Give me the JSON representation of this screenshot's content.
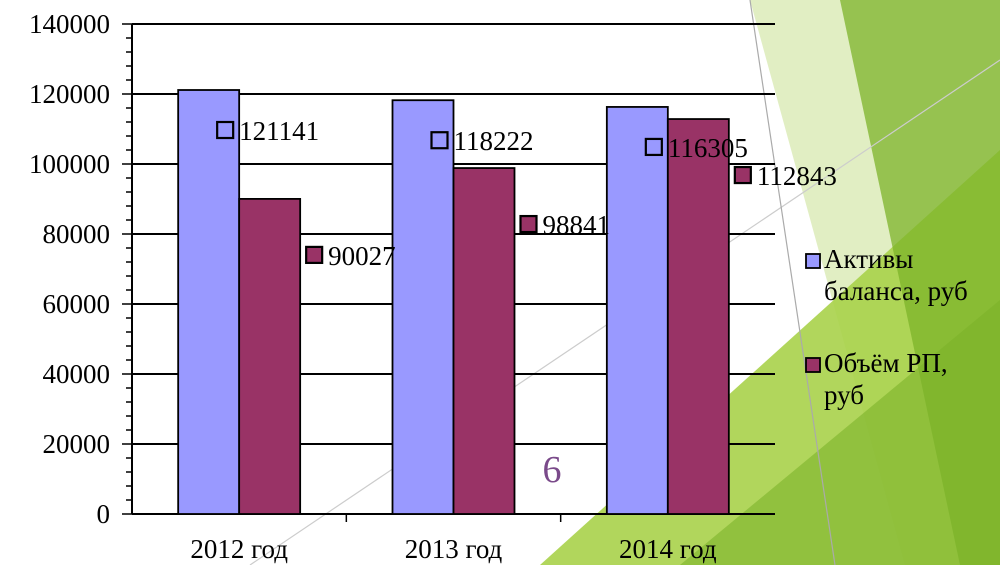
{
  "slide_number": "6",
  "colors": {
    "series_assets": "#9999FF",
    "series_volume": "#993366",
    "deco_green_light": "#DCEBB8",
    "deco_green_mid": "#A9D24A",
    "deco_green_dark": "#7CB32A",
    "slide_number": "#7A4A8A"
  },
  "chart_data": {
    "type": "bar",
    "categories": [
      "2012 год",
      "2013 год",
      "2014 год"
    ],
    "series": [
      {
        "name": "Активы баланса, руб",
        "values": [
          121141,
          118222,
          116305
        ]
      },
      {
        "name": "Объём РП, руб",
        "values": [
          90027,
          98841,
          112843
        ]
      }
    ],
    "ylim": [
      0,
      140000
    ],
    "y_ticks": [
      "0",
      "20000",
      "40000",
      "60000",
      "80000",
      "100000",
      "120000",
      "140000"
    ],
    "data_labels": [
      [
        "121141",
        "118222",
        "116305"
      ],
      [
        "90027",
        "98841",
        "112843"
      ]
    ],
    "grid": true,
    "legend_position": "right",
    "legend": [
      {
        "lines": [
          "Активы",
          "баланса, руб"
        ]
      },
      {
        "lines": [
          "Объём РП,",
          "руб"
        ]
      }
    ]
  }
}
